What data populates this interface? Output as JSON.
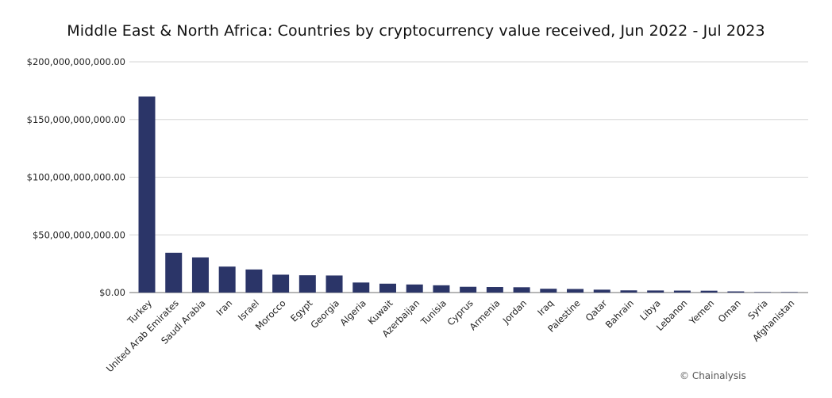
{
  "chart_data": {
    "type": "bar",
    "title": "Middle East & North Africa: Countries by cryptocurrency value received, Jun 2022 - Jul 2023",
    "xlabel": "",
    "ylabel": "",
    "ylim": [
      0,
      200000000000
    ],
    "yticks": [
      0,
      50000000000,
      100000000000,
      150000000000,
      200000000000
    ],
    "ytick_labels": [
      "$0.00",
      "$50,000,000,000.00",
      "$100,000,000,000.00",
      "$150,000,000,000.00",
      "$200,000,000,000.00"
    ],
    "grid": true,
    "bar_color": "#2b3568",
    "categories": [
      "Turkey",
      "United Arab Emirates",
      "Saudi Arabia",
      "Iran",
      "Israel",
      "Morocco",
      "Egypt",
      "Georgia",
      "Algeria",
      "Kuwait",
      "Azerbaijan",
      "Tunisia",
      "Cyprus",
      "Armenia",
      "Jordan",
      "Iraq",
      "Palestine",
      "Qatar",
      "Bahrain",
      "Libya",
      "Lebanon",
      "Yemen",
      "Oman",
      "Syria",
      "Afghanistan"
    ],
    "values": [
      170000000000,
      34500000000,
      30500000000,
      22500000000,
      20000000000,
      15500000000,
      15000000000,
      14800000000,
      8700000000,
      7700000000,
      7000000000,
      6300000000,
      5000000000,
      4800000000,
      4600000000,
      3300000000,
      3100000000,
      2500000000,
      1900000000,
      1800000000,
      1700000000,
      1600000000,
      1000000000,
      300000000,
      200000000
    ]
  },
  "credit": "© Chainalysis"
}
